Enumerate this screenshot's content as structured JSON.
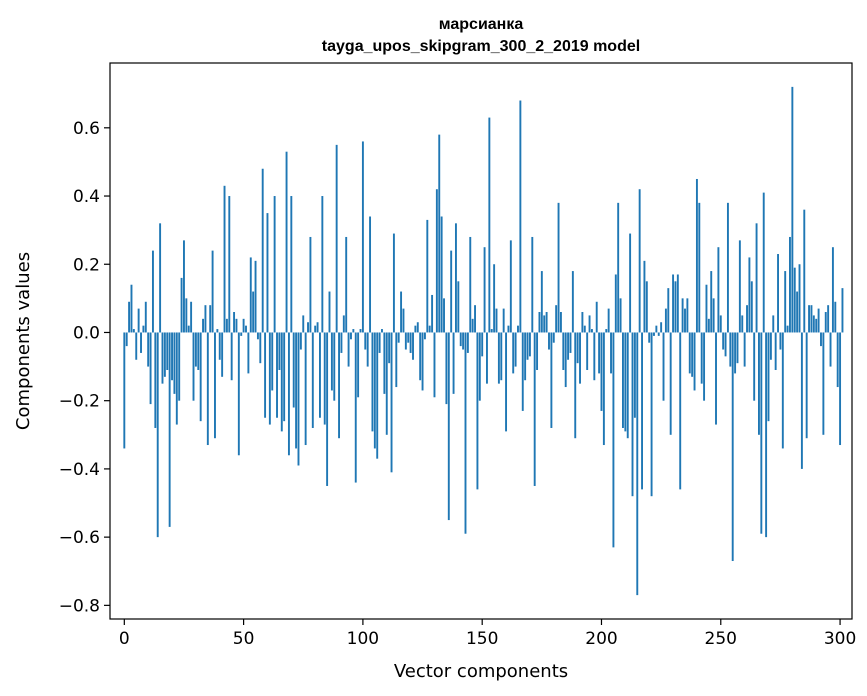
{
  "chart_data": {
    "type": "bar",
    "title_lines": [
      "марсианка",
      "tayga_upos_skipgram_300_2_2019 model"
    ],
    "xlabel": "Vector components",
    "ylabel": "Components values",
    "xlim": [
      -6,
      305
    ],
    "ylim": [
      -0.84,
      0.79
    ],
    "xticks": [
      0,
      50,
      100,
      150,
      200,
      250,
      300
    ],
    "xtick_labels": [
      "0",
      "50",
      "100",
      "150",
      "200",
      "250",
      "300"
    ],
    "yticks": [
      -0.8,
      -0.6,
      -0.4,
      -0.2,
      0.0,
      0.2,
      0.4,
      0.6
    ],
    "ytick_labels": [
      "−0.8",
      "−0.6",
      "−0.4",
      "−0.2",
      "0.0",
      "0.2",
      "0.4",
      "0.6"
    ],
    "bar_color": "#1f77b4",
    "x_start": 0,
    "values": [
      -0.34,
      -0.04,
      0.09,
      0.14,
      0.01,
      -0.08,
      0.07,
      -0.06,
      0.02,
      0.09,
      -0.1,
      -0.21,
      0.24,
      -0.28,
      -0.6,
      0.32,
      -0.15,
      -0.13,
      -0.11,
      -0.57,
      -0.14,
      -0.18,
      -0.27,
      -0.2,
      0.16,
      0.27,
      0.1,
      0.02,
      0.09,
      -0.2,
      -0.1,
      -0.11,
      -0.26,
      0.04,
      0.08,
      -0.33,
      0.08,
      0.24,
      -0.31,
      0.01,
      -0.08,
      -0.13,
      0.43,
      0.04,
      0.4,
      -0.14,
      0.06,
      0.04,
      -0.36,
      -0.01,
      0.04,
      0.02,
      -0.12,
      0.22,
      0.12,
      0.21,
      -0.02,
      -0.09,
      0.48,
      -0.25,
      0.35,
      -0.27,
      -0.17,
      0.4,
      -0.25,
      -0.11,
      -0.29,
      -0.26,
      0.53,
      -0.36,
      0.4,
      -0.22,
      -0.34,
      -0.39,
      -0.05,
      0.05,
      -0.33,
      0.03,
      0.28,
      -0.28,
      0.02,
      0.03,
      -0.25,
      0.4,
      -0.27,
      -0.45,
      0.12,
      -0.17,
      -0.2,
      0.55,
      -0.31,
      -0.06,
      0.05,
      0.28,
      -0.1,
      -0.02,
      0.01,
      -0.44,
      -0.19,
      0.01,
      0.56,
      -0.05,
      -0.1,
      0.34,
      -0.29,
      -0.34,
      -0.37,
      -0.06,
      0.01,
      -0.18,
      -0.3,
      -0.09,
      -0.41,
      0.29,
      -0.16,
      -0.03,
      0.12,
      0.07,
      -0.05,
      -0.03,
      -0.06,
      -0.08,
      0.02,
      0.03,
      -0.14,
      -0.17,
      -0.02,
      0.33,
      0.02,
      0.11,
      -0.19,
      0.42,
      0.58,
      0.34,
      0.1,
      -0.21,
      -0.55,
      0.24,
      -0.18,
      0.32,
      0.15,
      -0.04,
      -0.05,
      -0.59,
      -0.06,
      0.28,
      0.04,
      0.08,
      -0.46,
      -0.2,
      -0.07,
      0.25,
      -0.15,
      0.63,
      0.01,
      0.2,
      0.07,
      -0.15,
      -0.14,
      0.07,
      -0.29,
      0.02,
      0.27,
      -0.12,
      -0.1,
      0.02,
      0.68,
      -0.23,
      -0.14,
      -0.08,
      -0.07,
      0.28,
      -0.45,
      -0.11,
      0.06,
      0.18,
      0.05,
      0.06,
      -0.05,
      -0.28,
      -0.03,
      0.08,
      0.38,
      0.06,
      -0.11,
      -0.16,
      -0.08,
      -0.06,
      0.18,
      -0.31,
      -0.09,
      -0.15,
      0.06,
      0.02,
      -0.11,
      0.05,
      0.01,
      -0.14,
      0.09,
      -0.12,
      -0.23,
      -0.33,
      0.01,
      0.07,
      -0.12,
      -0.63,
      0.17,
      0.38,
      0.1,
      -0.28,
      -0.29,
      -0.31,
      0.29,
      -0.48,
      -0.25,
      -0.77,
      0.42,
      -0.46,
      0.21,
      0.15,
      -0.03,
      -0.48,
      -0.01,
      0.02,
      -0.01,
      0.03,
      -0.2,
      0.07,
      0.13,
      -0.3,
      0.17,
      0.15,
      0.17,
      -0.46,
      0.1,
      0.07,
      0.1,
      -0.12,
      -0.13,
      -0.17,
      0.45,
      0.38,
      -0.15,
      -0.2,
      0.14,
      0.04,
      0.18,
      0.1,
      -0.27,
      0.25,
      0.05,
      -0.05,
      -0.07,
      0.38,
      -0.1,
      -0.67,
      -0.12,
      -0.09,
      0.27,
      0.05,
      -0.1,
      0.08,
      0.22,
      0.15,
      -0.2,
      0.32,
      -0.3,
      -0.59,
      0.41,
      -0.6,
      -0.26,
      -0.08,
      0.05,
      -0.11,
      0.23,
      -0.05,
      -0.34,
      0.18,
      0.02,
      0.28,
      0.72,
      0.19,
      0.12,
      0.2,
      -0.4,
      0.36,
      -0.31,
      0.08,
      0.08,
      0.05,
      0.04,
      0.07,
      -0.04,
      -0.3,
      0.06,
      0.08,
      -0.1,
      0.25,
      0.09,
      -0.16,
      -0.33,
      0.13
    ]
  }
}
